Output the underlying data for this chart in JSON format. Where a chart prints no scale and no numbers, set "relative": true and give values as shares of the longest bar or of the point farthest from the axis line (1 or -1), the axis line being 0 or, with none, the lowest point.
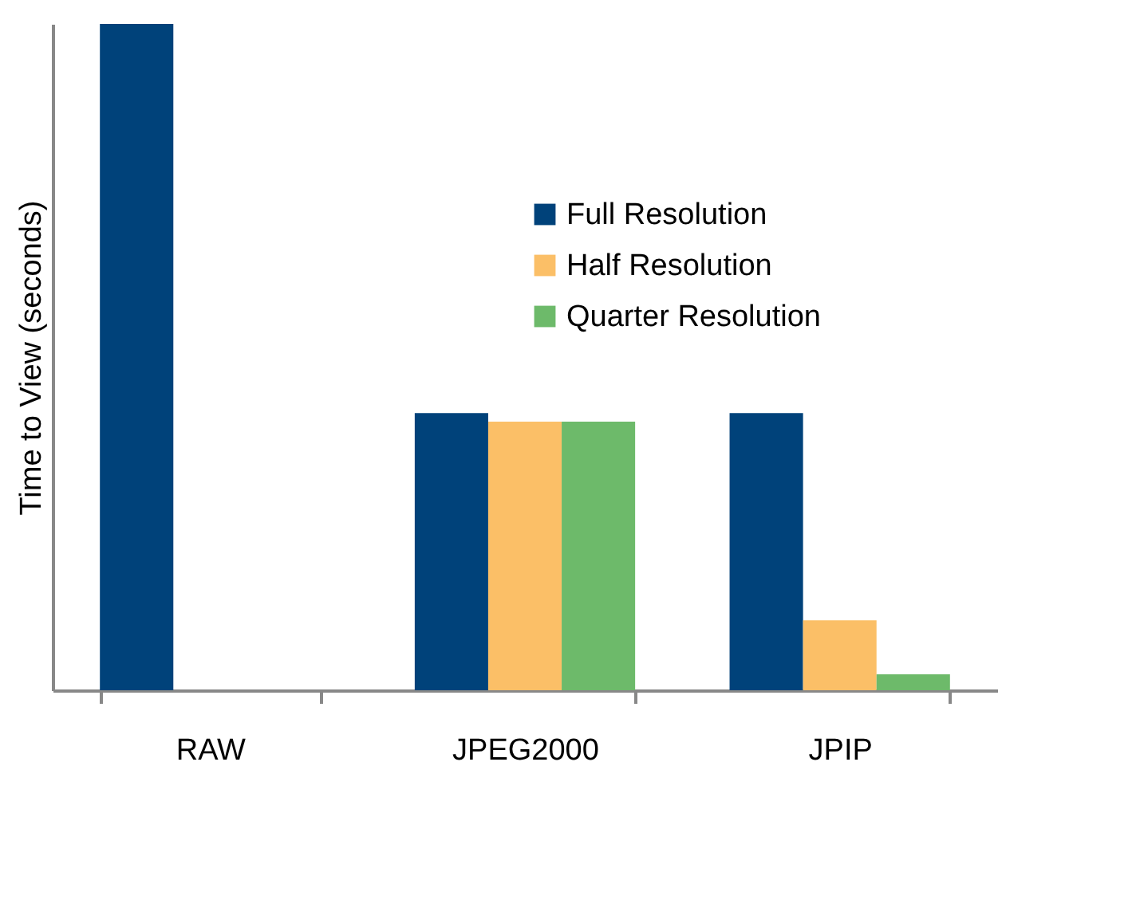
{
  "chart_data": {
    "type": "bar",
    "ylabel": "Time to View (seconds)",
    "relative": true,
    "categories": [
      "RAW",
      "JPEG2000",
      "JPIP"
    ],
    "series": [
      {
        "name": "Full Resolution",
        "color": "#00427a",
        "values": [
          1,
          0.416,
          0.416
        ]
      },
      {
        "name": "Half Resolution",
        "color": "#fbbf67",
        "values": [
          null,
          0.403,
          0.105
        ]
      },
      {
        "name": "Quarter Resolution",
        "color": "#6dba6a",
        "values": [
          null,
          0.403,
          0.024
        ]
      }
    ],
    "legend": "top right",
    "grid": false
  }
}
